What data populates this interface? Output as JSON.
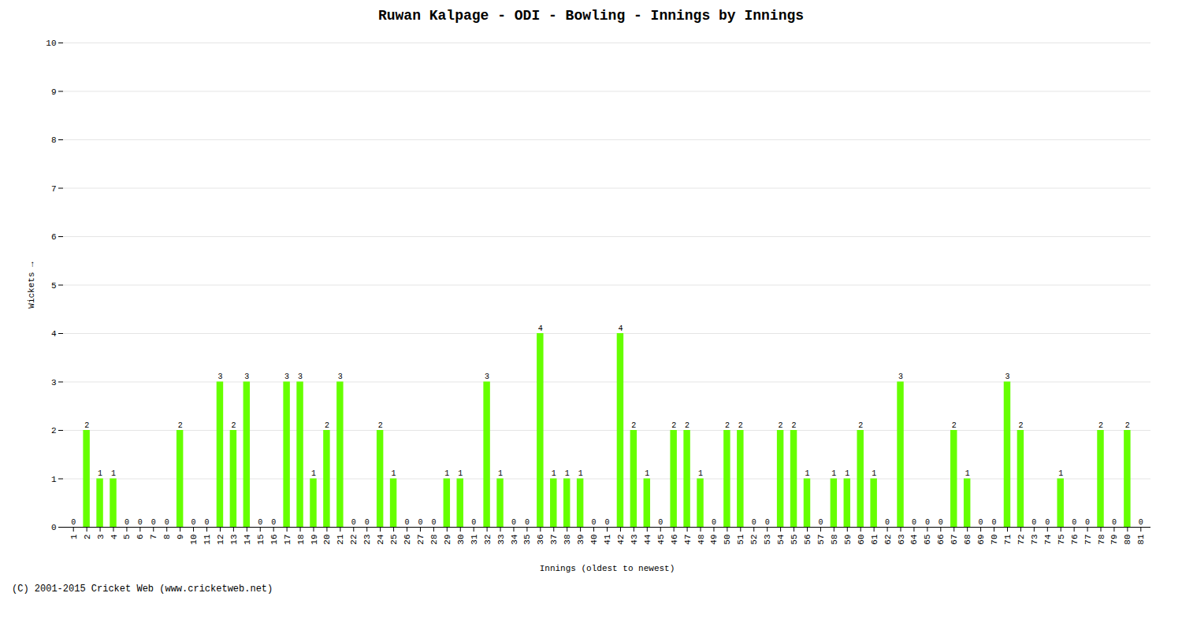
{
  "chart_data": {
    "type": "bar",
    "title": "Ruwan Kalpage - ODI - Bowling - Innings by Innings",
    "xlabel": "Innings (oldest to newest)",
    "ylabel": "Wickets",
    "categories": [
      1,
      2,
      3,
      4,
      5,
      6,
      7,
      8,
      9,
      10,
      11,
      12,
      13,
      14,
      15,
      16,
      17,
      18,
      19,
      20,
      21,
      22,
      23,
      24,
      25,
      26,
      27,
      28,
      29,
      30,
      31,
      32,
      33,
      34,
      35,
      36,
      37,
      38,
      39,
      40,
      41,
      42,
      43,
      44,
      45,
      46,
      47,
      48,
      49,
      50,
      51,
      52,
      53,
      54,
      55,
      56,
      57,
      58,
      59,
      60,
      61,
      62,
      63,
      64,
      65,
      66,
      67,
      68,
      69,
      70,
      71,
      72,
      73,
      74,
      75,
      76,
      77,
      78,
      79,
      80,
      81
    ],
    "values": [
      0,
      2,
      1,
      1,
      0,
      0,
      0,
      0,
      2,
      0,
      0,
      3,
      2,
      3,
      0,
      0,
      3,
      3,
      1,
      2,
      3,
      0,
      0,
      2,
      1,
      0,
      0,
      0,
      1,
      1,
      0,
      3,
      1,
      0,
      0,
      4,
      1,
      1,
      1,
      0,
      0,
      4,
      2,
      1,
      0,
      2,
      2,
      1,
      0,
      2,
      2,
      0,
      0,
      2,
      2,
      1,
      0,
      1,
      1,
      2,
      1,
      0,
      3,
      0,
      0,
      0,
      2,
      1,
      0,
      0,
      3,
      2,
      0,
      0,
      1,
      0,
      0,
      2,
      0,
      2,
      0
    ],
    "color": "#66ff00",
    "ylim": [
      0,
      10
    ],
    "yticks": [
      0,
      1,
      2,
      3,
      4,
      5,
      6,
      7,
      8,
      9,
      10
    ],
    "grid": true,
    "data_labels": true,
    "annotations": [
      "(C) 2001-2015 Cricket Web (www.cricketweb.net)"
    ]
  }
}
